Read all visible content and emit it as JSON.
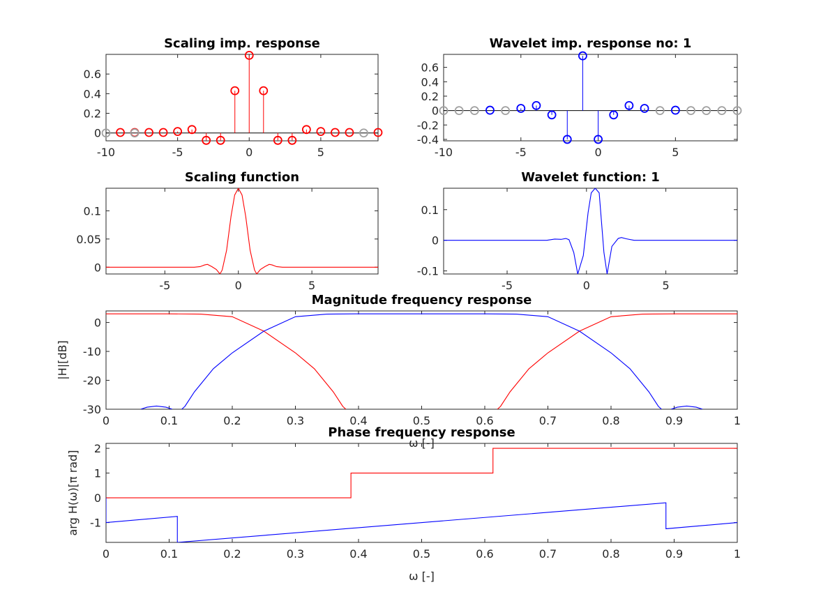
{
  "colors": {
    "scaling": "#ff0000",
    "wavelet": "#0000ff",
    "padding": "#a0a0a0",
    "axis": "#262626"
  },
  "chart_data": [
    {
      "id": "scaling-imp",
      "type": "stem",
      "title": "Scaling imp. response",
      "xlim": [
        -10,
        9
      ],
      "ylim": [
        -0.08,
        0.8
      ],
      "xticks": [
        -10,
        -5,
        0,
        5
      ],
      "xticklabels": [
        "-10",
        "-5",
        "0",
        "5"
      ],
      "yticks": [
        0,
        0.2,
        0.4,
        0.6
      ],
      "yticklabels": [
        "0",
        "0.2",
        "0.4",
        "0.6"
      ],
      "series": [
        {
          "color": "scaling",
          "x": [
            -9,
            -8,
            -7,
            -6,
            -5,
            -4,
            -3,
            -2,
            -1,
            0,
            1,
            2,
            3,
            4,
            5,
            6,
            7,
            9
          ],
          "values": [
            0.005,
            0.005,
            0.005,
            0.005,
            0.015,
            0.035,
            -0.075,
            -0.075,
            0.43,
            0.79,
            0.43,
            -0.075,
            -0.075,
            0.035,
            0.015,
            0.005,
            0.005,
            0.005
          ]
        },
        {
          "color": "padding",
          "x": [
            -10,
            -8,
            8
          ],
          "values": [
            0,
            0,
            0
          ]
        }
      ]
    },
    {
      "id": "wavelet-imp",
      "type": "stem",
      "title": "Wavelet imp. response no: 1",
      "xlim": [
        -10,
        9
      ],
      "ylim": [
        -0.42,
        0.78
      ],
      "xticks": [
        -10,
        -5,
        0,
        5
      ],
      "xticklabels": [
        "-10",
        "-5",
        "0",
        "5"
      ],
      "yticks": [
        -0.4,
        -0.2,
        0,
        0.2,
        0.4,
        0.6
      ],
      "yticklabels": [
        "-0.4",
        "-0.2",
        "0",
        "0.2",
        "0.4",
        "0.6"
      ],
      "series": [
        {
          "color": "wavelet",
          "x": [
            -7,
            -5,
            -4,
            -3,
            -2,
            -1,
            0,
            1,
            2,
            3,
            5
          ],
          "values": [
            0.005,
            0.03,
            0.07,
            -0.06,
            -0.4,
            0.76,
            -0.4,
            -0.06,
            0.07,
            0.03,
            0.005
          ]
        },
        {
          "color": "padding",
          "x": [
            -10,
            -9,
            -8,
            -6,
            4,
            6,
            7,
            8,
            9
          ],
          "values": [
            0,
            0,
            0,
            0,
            0,
            0,
            0,
            0,
            0
          ]
        }
      ]
    },
    {
      "id": "scaling-fn",
      "type": "line",
      "title": "Scaling function",
      "xlim": [
        -9,
        9.5
      ],
      "ylim": [
        -0.012,
        0.14
      ],
      "xticks": [
        -5,
        0,
        5
      ],
      "xticklabels": [
        "-5",
        "0",
        "5"
      ],
      "yticks": [
        0,
        0.05,
        0.1
      ],
      "yticklabels": [
        "0",
        "0.05",
        "0.1"
      ],
      "series": [
        {
          "color": "scaling",
          "x": [
            -9,
            -3,
            -2.6,
            -2.3,
            -2.1,
            -1.8,
            -1.5,
            -1.25,
            -1.1,
            -0.8,
            -0.5,
            -0.25,
            0,
            0.25,
            0.5,
            0.8,
            1.1,
            1.25,
            1.5,
            1.8,
            2.1,
            2.3,
            2.6,
            3,
            9.5
          ],
          "values": [
            0,
            0,
            0.001,
            0.004,
            0.005,
            0.001,
            -0.004,
            -0.012,
            -0.005,
            0.03,
            0.09,
            0.128,
            0.14,
            0.128,
            0.09,
            0.03,
            -0.005,
            -0.012,
            -0.004,
            0.001,
            0.005,
            0.004,
            0.001,
            0,
            0
          ]
        }
      ]
    },
    {
      "id": "wavelet-fn",
      "type": "line",
      "title": "Wavelet function: 1",
      "xlim": [
        -9,
        9.5
      ],
      "ylim": [
        -0.11,
        0.17
      ],
      "xticks": [
        -5,
        0,
        5
      ],
      "xticklabels": [
        "-5",
        "0",
        "5"
      ],
      "yticks": [
        -0.1,
        0,
        0.1
      ],
      "yticklabels": [
        "-0.1",
        "0",
        "0.1"
      ],
      "series": [
        {
          "color": "wavelet",
          "x": [
            -9,
            -2.5,
            -2,
            -1.6,
            -1.3,
            -1.1,
            -0.8,
            -0.55,
            -0.2,
            0.1,
            0.3,
            0.55,
            0.8,
            1.1,
            1.3,
            1.6,
            2,
            2.2,
            2.5,
            3,
            9.5
          ],
          "values": [
            0,
            0,
            0.004,
            0.003,
            0.006,
            0.002,
            -0.04,
            -0.11,
            -0.05,
            0.09,
            0.155,
            0.17,
            0.155,
            -0.04,
            -0.11,
            -0.02,
            0.006,
            0.009,
            0.005,
            0,
            0
          ]
        }
      ]
    },
    {
      "id": "magnitude",
      "type": "line",
      "title": "Magnitude frequency response",
      "ylabel": "|H|[dB]",
      "xlabel": "ω [-]",
      "xlim": [
        0,
        1
      ],
      "ylim": [
        -30,
        4
      ],
      "xticks": [
        0,
        0.1,
        0.2,
        0.3,
        0.4,
        0.5,
        0.6,
        0.7,
        0.8,
        0.9,
        1
      ],
      "xticklabels": [
        "0",
        "0.1",
        "0.2",
        "0.3",
        "0.4",
        "0.5",
        "0.6",
        "0.7",
        "0.8",
        "0.9",
        "1"
      ],
      "yticks": [
        -30,
        -20,
        -10,
        0
      ],
      "yticklabels": [
        "-30",
        "-20",
        "-10",
        "0"
      ],
      "series": [
        {
          "color": "scaling",
          "x": [
            0,
            0.1,
            0.15,
            0.2,
            0.25,
            0.3,
            0.33,
            0.36,
            0.375,
            0.38,
            null,
            0.62,
            0.625,
            0.64,
            0.67,
            0.7,
            0.75,
            0.8,
            0.85,
            0.9,
            1
          ],
          "values": [
            3,
            3,
            2.9,
            2,
            -3,
            -10.5,
            -16,
            -24,
            -29,
            -30,
            null,
            -30,
            -29,
            -24,
            -16,
            -10.5,
            -3,
            2,
            2.9,
            3,
            3
          ]
        },
        {
          "color": "wavelet",
          "x": [
            0.12,
            0.125,
            0.14,
            0.17,
            0.2,
            0.25,
            0.3,
            0.35,
            0.4,
            0.5,
            0.6,
            0.65,
            0.7,
            0.75,
            0.8,
            0.83,
            0.86,
            0.875,
            0.88
          ],
          "values": [
            -30,
            -29,
            -24,
            -16,
            -10.5,
            -3,
            2,
            2.9,
            3,
            3,
            3,
            2.9,
            2,
            -3,
            -10.5,
            -16,
            -24,
            -29,
            -30
          ]
        },
        {
          "color": "wavelet",
          "x": [
            0.055,
            0.065,
            0.08,
            0.095,
            0.105,
            null,
            0.895,
            0.905,
            0.92,
            0.935,
            0.945
          ],
          "values": [
            -30,
            -29.3,
            -28.9,
            -29.3,
            -30,
            null,
            -30,
            -29.3,
            -28.9,
            -29.3,
            -30
          ]
        }
      ]
    },
    {
      "id": "phase",
      "type": "line",
      "title": "Phase frequency response",
      "ylabel": "arg H(ω)[π rad]",
      "xlabel": "ω [-]",
      "xlim": [
        0,
        1
      ],
      "ylim": [
        -1.8,
        2.2
      ],
      "xticks": [
        0,
        0.1,
        0.2,
        0.3,
        0.4,
        0.5,
        0.6,
        0.7,
        0.8,
        0.9,
        1
      ],
      "xticklabels": [
        "0",
        "0.1",
        "0.2",
        "0.3",
        "0.4",
        "0.5",
        "0.6",
        "0.7",
        "0.8",
        "0.9",
        "1"
      ],
      "yticks": [
        -1,
        0,
        1,
        2
      ],
      "yticklabels": [
        "-1",
        "0",
        "1",
        "2"
      ],
      "series": [
        {
          "color": "scaling",
          "x": [
            0,
            0.388,
            0.388,
            0.613,
            0.613,
            1
          ],
          "values": [
            0,
            0,
            1,
            1,
            2,
            2
          ]
        },
        {
          "color": "wavelet",
          "x": [
            0,
            0,
            0.113,
            0.113,
            0.887,
            0.887,
            1
          ],
          "values": [
            0,
            -1,
            -0.75,
            -1.8,
            -0.2,
            -1.25,
            -1
          ]
        }
      ]
    }
  ]
}
